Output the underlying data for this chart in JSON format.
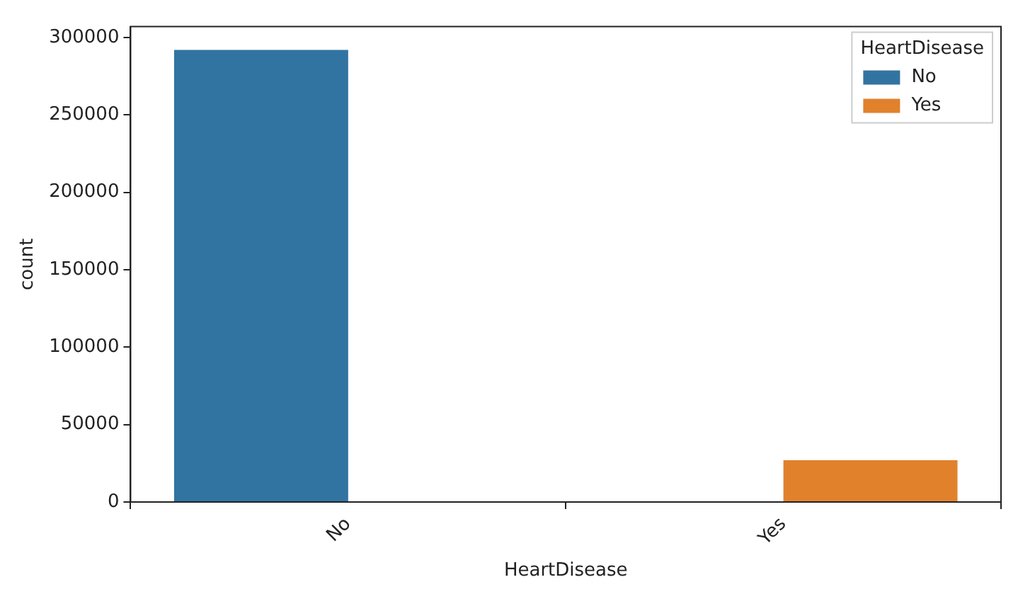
{
  "chart_data": {
    "type": "bar",
    "xlabel": "HeartDisease",
    "ylabel": "count",
    "legend_title": "HeartDisease",
    "categories": [
      "No",
      "Yes"
    ],
    "series": [
      {
        "name": "No",
        "color": "#3274a1",
        "values": [
          292000,
          null
        ]
      },
      {
        "name": "Yes",
        "color": "#e1812c",
        "values": [
          null,
          27000
        ]
      }
    ],
    "ylim": [
      0,
      307000
    ],
    "yticks": [
      0,
      50000,
      100000,
      150000,
      200000,
      250000,
      300000
    ],
    "grid": false,
    "legend": "top right"
  }
}
